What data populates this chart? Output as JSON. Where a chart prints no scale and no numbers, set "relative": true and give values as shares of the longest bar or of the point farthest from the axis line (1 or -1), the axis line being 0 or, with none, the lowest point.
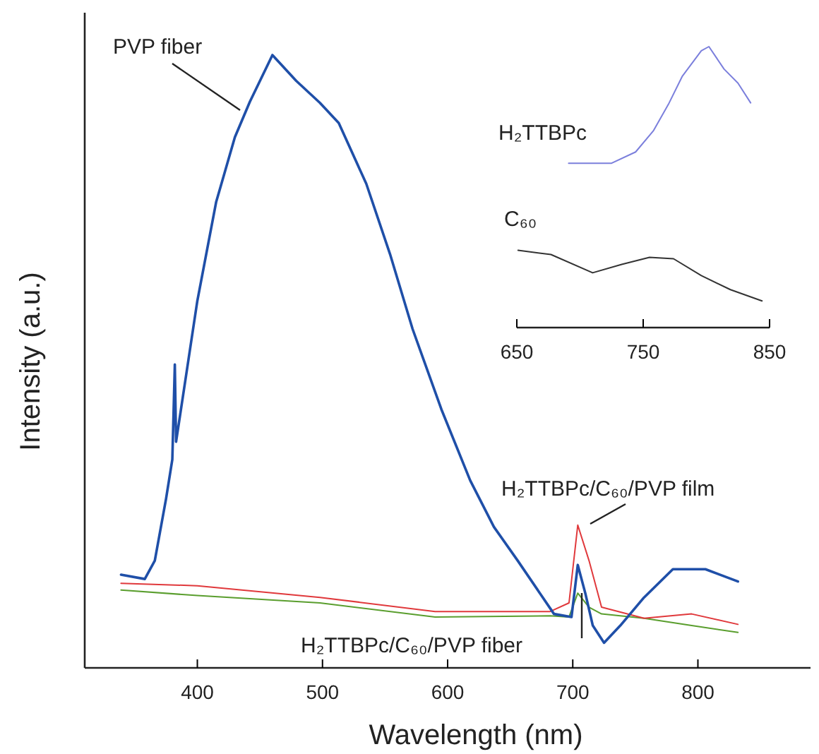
{
  "chart_data": [
    {
      "type": "line",
      "relative": true,
      "xlabel": "Wavelength (nm)",
      "ylabel": "Intensity (a.u.)",
      "xlim": [
        310,
        890
      ],
      "xticks": [
        400,
        500,
        600,
        700,
        800
      ],
      "tick_labels": "x",
      "legend": false,
      "grid": false,
      "series": [
        {
          "name": "PVP fiber",
          "color": "#1f4fa8",
          "x": [
            339,
            358,
            366,
            375,
            380,
            382,
            383,
            400,
            415,
            430,
            442,
            460,
            479,
            498,
            513,
            535,
            554,
            572,
            595,
            618,
            637,
            656,
            685,
            699,
            704,
            710,
            716,
            725,
            738,
            757,
            780,
            806,
            832
          ],
          "values": [
            0.152,
            0.145,
            0.175,
            0.276,
            0.34,
            0.495,
            0.369,
            0.599,
            0.76,
            0.866,
            0.924,
            1,
            0.958,
            0.922,
            0.889,
            0.79,
            0.675,
            0.553,
            0.422,
            0.306,
            0.23,
            0.175,
            0.088,
            0.083,
            0.168,
            0.122,
            0.069,
            0.041,
            0.069,
            0.115,
            0.161,
            0.161,
            0.141
          ]
        },
        {
          "name": "H₂TTBPc/C₆₀/PVP film",
          "color": "#e0393c",
          "x": [
            339,
            400,
            498,
            590,
            682,
            697,
            704,
            713,
            723,
            757,
            795,
            832
          ],
          "values": [
            0.138,
            0.134,
            0.115,
            0.092,
            0.092,
            0.106,
            0.233,
            0.175,
            0.099,
            0.081,
            0.088,
            0.071
          ]
        },
        {
          "name": "H₂TTBPc/C₆₀/PVP fiber",
          "color": "#5a9e2e",
          "x": [
            339,
            400,
            498,
            590,
            682,
            697,
            704,
            713,
            723,
            757,
            795,
            832
          ],
          "values": [
            0.127,
            0.118,
            0.106,
            0.083,
            0.085,
            0.083,
            0.122,
            0.099,
            0.088,
            0.081,
            0.069,
            0.058
          ]
        }
      ]
    },
    {
      "type": "line",
      "relative": true,
      "xlim": [
        650,
        850
      ],
      "xticks": [
        650,
        750,
        850
      ],
      "tick_labels": "x",
      "legend": false,
      "grid": false,
      "series": [
        {
          "name": "H₂TTBPc",
          "color": "#7b7fdc",
          "x": [
            691,
            725,
            744,
            758,
            770,
            781,
            796,
            802,
            814,
            825,
            835
          ],
          "values": [
            0.585,
            0.585,
            0.625,
            0.7,
            0.795,
            0.895,
            0.985,
            1,
            0.92,
            0.87,
            0.8
          ]
        },
        {
          "name": "C₆₀",
          "color": "#333333",
          "x": [
            651,
            677,
            710,
            733,
            755,
            774,
            796,
            819,
            844
          ],
          "values": [
            0.275,
            0.26,
            0.195,
            0.225,
            0.25,
            0.245,
            0.185,
            0.135,
            0.095
          ]
        }
      ]
    }
  ]
}
